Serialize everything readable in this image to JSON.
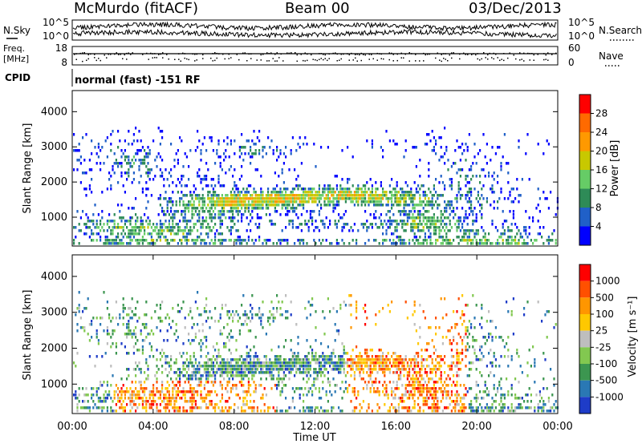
{
  "header": {
    "station": "McMurdo (fitACF)",
    "beam": "Beam 00",
    "date": "03/Dec/2013"
  },
  "strip_labels": {
    "nsky": "N.Sky",
    "nsearch": "N.Search",
    "freq_line1": "Freq.",
    "freq_line2": "[MHz]",
    "nave": "Nave",
    "cpid": "CPID",
    "cpid_value": "normal (fast) -151 RF"
  },
  "strip_ticks": {
    "noise_left": [
      "10^5",
      "10^0"
    ],
    "noise_right": [
      "10^5",
      "10^0"
    ],
    "freq_left": [
      "18",
      "8"
    ],
    "freq_right": [
      "60",
      "0"
    ]
  },
  "colors": {
    "power_scale": [
      "#0000ff",
      "#2060c8",
      "#2e8b57",
      "#66cc66",
      "#c8c800",
      "#ff9900",
      "#ff6a00",
      "#ff0000"
    ],
    "velocity_scale": [
      "#1e3cc8",
      "#2a78b4",
      "#3c9650",
      "#82c850",
      "#bebebe",
      "#ffc800",
      "#ff9600",
      "#ff5000",
      "#ff0000"
    ]
  },
  "chart_data": [
    {
      "type": "heatmap",
      "name": "power",
      "xlabel": "Time UT",
      "ylabel": "Slant Range [km]",
      "xlim": [
        0,
        24
      ],
      "ylim": [
        180,
        4600
      ],
      "xticks": [
        "00:00",
        "04:00",
        "08:00",
        "12:00",
        "16:00",
        "20:00",
        "00:00"
      ],
      "yticks": [
        1000,
        2000,
        3000,
        4000
      ],
      "colorbar": {
        "label": "Power [dB]",
        "ticks": [
          "4",
          "8",
          "12",
          "16",
          "20",
          "24",
          "28"
        ],
        "range": [
          0,
          30
        ]
      }
    },
    {
      "type": "heatmap",
      "name": "velocity",
      "xlabel": "Time UT",
      "ylabel": "Slant Range [km]",
      "xlim": [
        0,
        24
      ],
      "ylim": [
        180,
        4600
      ],
      "xticks": [
        "00:00",
        "04:00",
        "08:00",
        "12:00",
        "16:00",
        "20:00",
        "00:00"
      ],
      "yticks": [
        1000,
        2000,
        3000,
        4000
      ],
      "colorbar": {
        "label": "Velocity [m s⁻¹]",
        "ticks": [
          "1000",
          "500",
          "100",
          "25",
          "-25",
          "-100",
          "-500",
          "-1000"
        ]
      }
    }
  ]
}
